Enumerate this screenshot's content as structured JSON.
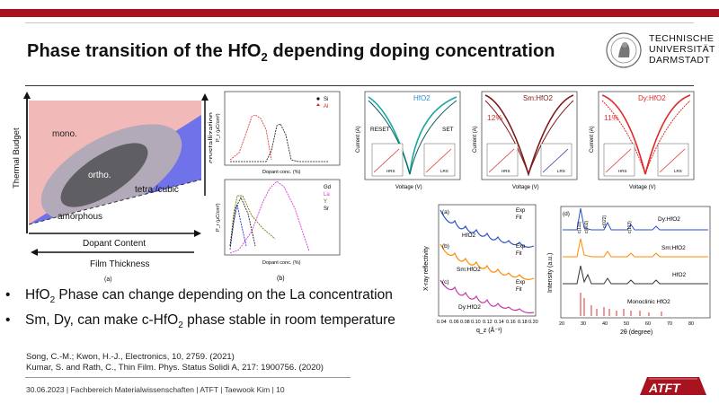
{
  "slide": {
    "title_main": "Phase transition of the HfO",
    "title_sub": "2",
    "title_rest": " depending doping concentration",
    "logo_lines": [
      "TECHNISCHE",
      "UNIVERSITÄT",
      "DARMSTADT"
    ],
    "accent_color": "#a8131f"
  },
  "phase_diagram": {
    "y_label": "Thermal Budget",
    "crystallization": "crystallization",
    "region_mono": "mono.",
    "region_ortho": "ortho.",
    "region_tetra": "tetra./cubic",
    "region_amorphous": "amorphous",
    "x_label": "Dopant Content",
    "x_label2": "Film Thickness",
    "caption": "(a)"
  },
  "pr_charts": {
    "top_legend": [
      "Si",
      "Al"
    ],
    "bottom_legend": [
      "Gd",
      "La",
      "Y",
      "Sr"
    ],
    "y_label": "P_r (μC/cm²)",
    "x_label": "Dopant conc. (%)",
    "caption": "(b)"
  },
  "iv_curves": {
    "panel1_label": "HfO2",
    "panel1_annot": [
      "RESET",
      "SET"
    ],
    "panel2_label": "Sm:HfO2",
    "panel2_pct": "12%",
    "panel3_label": "Dy:HfO2",
    "panel3_pct": "11%",
    "x_label": "Voltage (V)",
    "y_label": "Current (A)",
    "inset_left": [
      "P-F model",
      "HRS",
      "√V"
    ],
    "inset_right": [
      "Ohmic",
      "LRS",
      "Voltage (V)"
    ]
  },
  "xrr": {
    "labels": [
      "(a)",
      "(b)",
      "(c)"
    ],
    "samples": [
      "HfO2",
      "Sm:HfO2",
      "Dy:HfO2"
    ],
    "legend": [
      "Exp",
      "Fit"
    ],
    "y_label": "X-ray reflectivity",
    "x_label": "q_z (Å⁻¹)",
    "x_ticks": [
      "0.04",
      "0.06",
      "0.08",
      "0.10",
      "0.12",
      "0.14",
      "0.16",
      "0.18",
      "0.20"
    ]
  },
  "xrd": {
    "label": "(d)",
    "samples": [
      "Dy:HfO2",
      "Sm:HfO2",
      "HfO2",
      "Monoclinic HfO2"
    ],
    "peaks": [
      "c(111)",
      "c(002)",
      "c(022)",
      "c(113)"
    ],
    "y_label": "Intensity (a.u.)",
    "x_label": "2θ (degree)",
    "x_ticks": [
      "20",
      "30",
      "40",
      "50",
      "60",
      "70",
      "80"
    ]
  },
  "bullets": [
    {
      "pre": "HfO",
      "sub": "2",
      "post": " Phase can change depending on the La concentration"
    },
    {
      "pre": "Sm, Dy, can make c-HfO",
      "sub": "2",
      "post": " phase stable in room temperature"
    }
  ],
  "references": [
    "Song, C.-M.; Kwon, H.-J., Electronics, 10, 2759. (2021)",
    "Kumar, S. and Rath, C., Thin Film. Phys. Status Solidi A, 217: 1900756. (2020)"
  ],
  "footer": "30.06.2023  |  Fachbereich Materialwissenschaften  |  ATFT  |  Taewook Kim  |  10",
  "atft_logo": "ATFT"
}
